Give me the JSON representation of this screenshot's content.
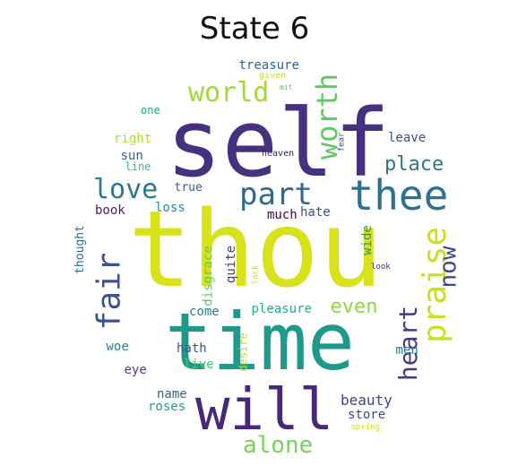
{
  "title": "State 6",
  "words": [
    {
      "text": "thou",
      "color": "#d8e219",
      "rotate": false
    },
    {
      "text": "self",
      "color": "#46317e",
      "rotate": false
    },
    {
      "text": "time",
      "color": "#1f9a8a",
      "rotate": false
    },
    {
      "text": "will",
      "color": "#482878",
      "rotate": false
    },
    {
      "text": "thee",
      "color": "#2c728e",
      "rotate": false
    },
    {
      "text": "part",
      "color": "#31688e",
      "rotate": false
    },
    {
      "text": "world",
      "color": "#a2da37",
      "rotate": false
    },
    {
      "text": "worth",
      "color": "#5ec962",
      "rotate": true
    },
    {
      "text": "love",
      "color": "#2a788e",
      "rotate": false
    },
    {
      "text": "fair",
      "color": "#3b528b",
      "rotate": true
    },
    {
      "text": "praise",
      "color": "#c8e020",
      "rotate": true
    },
    {
      "text": "place",
      "color": "#29798e",
      "rotate": false
    },
    {
      "text": "now",
      "color": "#3e4a89",
      "rotate": true
    },
    {
      "text": "heart",
      "color": "#443a83",
      "rotate": true
    },
    {
      "text": "even",
      "color": "#90d743",
      "rotate": false
    },
    {
      "text": "alone",
      "color": "#7ad151",
      "rotate": false
    },
    {
      "text": "beauty",
      "color": "#414487",
      "rotate": false
    },
    {
      "text": "treasure",
      "color": "#33638d",
      "rotate": false
    },
    {
      "text": "given",
      "color": "#c2df23",
      "rotate": false
    },
    {
      "text": "mit",
      "color": "#4fc16b",
      "rotate": false
    },
    {
      "text": "one",
      "color": "#22a884",
      "rotate": false
    },
    {
      "text": "right",
      "color": "#addc30",
      "rotate": false
    },
    {
      "text": "sun",
      "color": "#355f8d",
      "rotate": false
    },
    {
      "text": "line",
      "color": "#3dbc74",
      "rotate": false
    },
    {
      "text": "heaven",
      "color": "#2d1d6e",
      "rotate": false
    },
    {
      "text": "fear",
      "color": "#3e4989",
      "rotate": true
    },
    {
      "text": "leave",
      "color": "#3c4f8a",
      "rotate": false
    },
    {
      "text": "true",
      "color": "#38588c",
      "rotate": false
    },
    {
      "text": "book",
      "color": "#481a6c",
      "rotate": false
    },
    {
      "text": "loss",
      "color": "#21918c",
      "rotate": false
    },
    {
      "text": "much",
      "color": "#440154",
      "rotate": false
    },
    {
      "text": "hate",
      "color": "#3d4d8a",
      "rotate": false
    },
    {
      "text": "thought",
      "color": "#2e6d8e",
      "rotate": true
    },
    {
      "text": "disgrace",
      "color": "#5ec962",
      "rotate": true
    },
    {
      "text": "lack",
      "color": "#b5de2b",
      "rotate": true
    },
    {
      "text": "quite",
      "color": "#433e85",
      "rotate": true
    },
    {
      "text": "wide",
      "color": "#1f968b",
      "rotate": true
    },
    {
      "text": "look",
      "color": "#472c7a",
      "rotate": false
    },
    {
      "text": "come",
      "color": "#26828e",
      "rotate": false
    },
    {
      "text": "pleasure",
      "color": "#26ad81",
      "rotate": false
    },
    {
      "text": "woe",
      "color": "#25848e",
      "rotate": false
    },
    {
      "text": "hath",
      "color": "#3b528b",
      "rotate": false
    },
    {
      "text": "live",
      "color": "#4ac16d",
      "rotate": false
    },
    {
      "text": "desire",
      "color": "#b8de29",
      "rotate": true
    },
    {
      "text": "men",
      "color": "#2a768e",
      "rotate": false
    },
    {
      "text": "eye",
      "color": "#404688",
      "rotate": false
    },
    {
      "text": "name",
      "color": "#31668e",
      "rotate": false
    },
    {
      "text": "roses",
      "color": "#1fa088",
      "rotate": false
    },
    {
      "text": "store",
      "color": "#3f4788",
      "rotate": false
    },
    {
      "text": "spring",
      "color": "#c8e020",
      "rotate": false
    }
  ]
}
